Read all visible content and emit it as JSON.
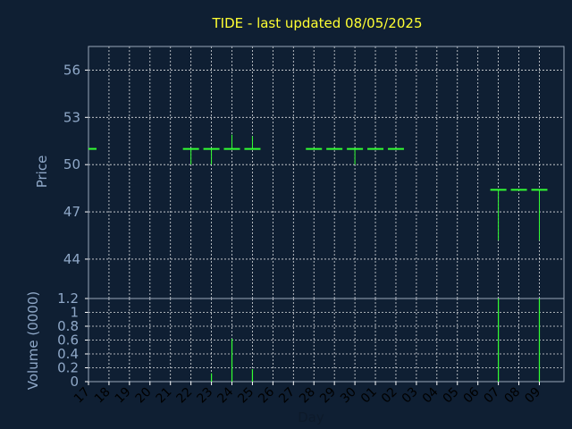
{
  "chart_data": {
    "type": "bar",
    "title": "TIDE - last updated 08/05/2025",
    "xlabel": "Day",
    "price": {
      "ylabel": "Price",
      "ylim": [
        41.5,
        57.5
      ],
      "yticks": [
        44,
        47,
        50,
        53,
        56
      ],
      "bars": [
        {
          "x": 17,
          "open": 51.0,
          "high": 51.0,
          "low": 51.0,
          "close": 51.0
        },
        {
          "x": 22,
          "open": 51.0,
          "high": 51.0,
          "low": 50.0,
          "close": 51.0
        },
        {
          "x": 23,
          "open": 51.0,
          "high": 51.0,
          "low": 50.0,
          "close": 51.0
        },
        {
          "x": 24,
          "open": 51.0,
          "high": 51.9,
          "low": 51.0,
          "close": 51.0
        },
        {
          "x": 25,
          "open": 51.0,
          "high": 51.8,
          "low": 51.0,
          "close": 51.0
        },
        {
          "x": 28,
          "open": 51.0,
          "high": 51.0,
          "low": 51.0,
          "close": 51.0
        },
        {
          "x": 29,
          "open": 51.0,
          "high": 51.0,
          "low": 51.0,
          "close": 51.0
        },
        {
          "x": 30,
          "open": 51.0,
          "high": 51.0,
          "low": 50.0,
          "close": 51.0
        },
        {
          "x": 31,
          "open": 51.0,
          "high": 51.0,
          "low": 51.0,
          "close": 51.0
        },
        {
          "x": 32,
          "open": 51.0,
          "high": 51.0,
          "low": 51.0,
          "close": 51.0
        },
        {
          "x": 37,
          "open": 48.4,
          "high": 48.4,
          "low": 45.2,
          "close": 48.4
        },
        {
          "x": 38,
          "open": 48.4,
          "high": 48.4,
          "low": 48.4,
          "close": 48.4
        },
        {
          "x": 39,
          "open": 48.4,
          "high": 48.4,
          "low": 45.2,
          "close": 48.4
        }
      ]
    },
    "volume": {
      "ylabel": "Volume (0000)",
      "ylim": [
        0,
        1.2
      ],
      "yticks": [
        "0",
        "0.2",
        "0.4",
        "0.6",
        "0.8",
        "1",
        "1.2"
      ],
      "bars": [
        {
          "x": 23,
          "value": 0.12
        },
        {
          "x": 24,
          "value": 0.62
        },
        {
          "x": 25,
          "value": 0.18
        },
        {
          "x": 37,
          "value": 1.2
        },
        {
          "x": 39,
          "value": 1.2
        }
      ]
    },
    "x_ticks": {
      "labels": [
        "17",
        "18",
        "19",
        "20",
        "21",
        "22",
        "23",
        "24",
        "25",
        "26",
        "27",
        "28",
        "29",
        "30",
        "01",
        "02",
        "03",
        "04",
        "05",
        "06",
        "07",
        "08",
        "09"
      ],
      "positions": [
        17,
        18,
        19,
        20,
        21,
        22,
        23,
        24,
        25,
        26,
        27,
        28,
        29,
        30,
        31,
        32,
        33,
        34,
        35,
        36,
        37,
        38,
        39
      ]
    },
    "x_range": [
      17,
      40.2
    ],
    "grid": true
  },
  "colors": {
    "background": "#0f1f33",
    "title": "#ffff33",
    "series": "#33ff33",
    "axis_text": "#8fa8c8"
  }
}
